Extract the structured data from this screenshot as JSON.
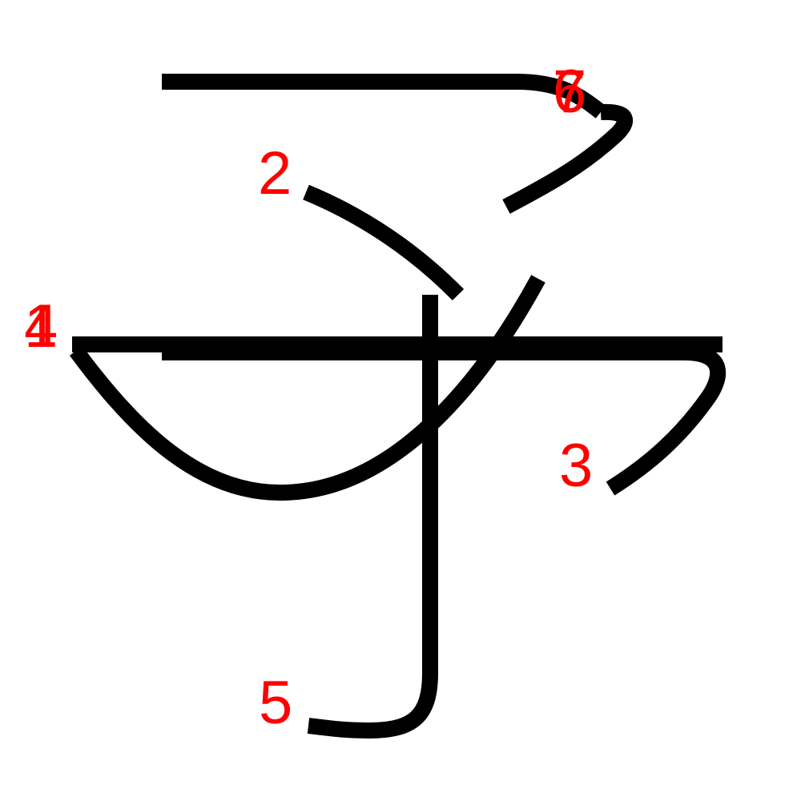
{
  "colors": {
    "stroke": "#000000",
    "label": "#ff0000",
    "background": "#ffffff"
  },
  "strokes": [
    {
      "id": "stroke-1",
      "label": "1"
    },
    {
      "id": "stroke-2",
      "label": "2"
    },
    {
      "id": "stroke-3",
      "label": "3"
    },
    {
      "id": "stroke-4",
      "label": "4"
    },
    {
      "id": "stroke-5",
      "label": "5"
    },
    {
      "id": "stroke-6",
      "label": "6"
    },
    {
      "id": "stroke-7",
      "label": "7"
    }
  ]
}
